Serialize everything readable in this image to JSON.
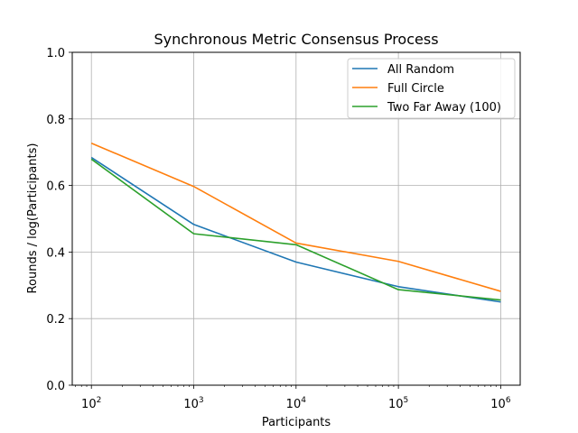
{
  "chart_data": {
    "type": "line",
    "title": "Synchronous Metric Consensus Process",
    "xlabel": "Participants",
    "ylabel": "Rounds / log(Participants)",
    "xscale": "log",
    "xlim": [
      65,
      1550000
    ],
    "ylim": [
      0,
      1.0
    ],
    "x": [
      100,
      1000,
      10000,
      100000,
      1000000
    ],
    "x_ticks": [
      {
        "value": 100,
        "base": "10",
        "exp": "2"
      },
      {
        "value": 1000,
        "base": "10",
        "exp": "3"
      },
      {
        "value": 10000,
        "base": "10",
        "exp": "4"
      },
      {
        "value": 100000,
        "base": "10",
        "exp": "5"
      },
      {
        "value": 1000000,
        "base": "10",
        "exp": "6"
      }
    ],
    "y_ticks": [
      "0.0",
      "0.2",
      "0.4",
      "0.6",
      "0.8",
      "1.0"
    ],
    "grid": true,
    "legend_position": "upper-right",
    "series": [
      {
        "name": "All Random",
        "color": "#1f77b4",
        "values": [
          0.684,
          0.483,
          0.37,
          0.296,
          0.25
        ]
      },
      {
        "name": "Full Circle",
        "color": "#ff7f0e",
        "values": [
          0.727,
          0.597,
          0.427,
          0.372,
          0.282
        ]
      },
      {
        "name": "Two Far Away (100)",
        "color": "#2ca02c",
        "values": [
          0.679,
          0.455,
          0.422,
          0.287,
          0.256
        ]
      }
    ]
  }
}
